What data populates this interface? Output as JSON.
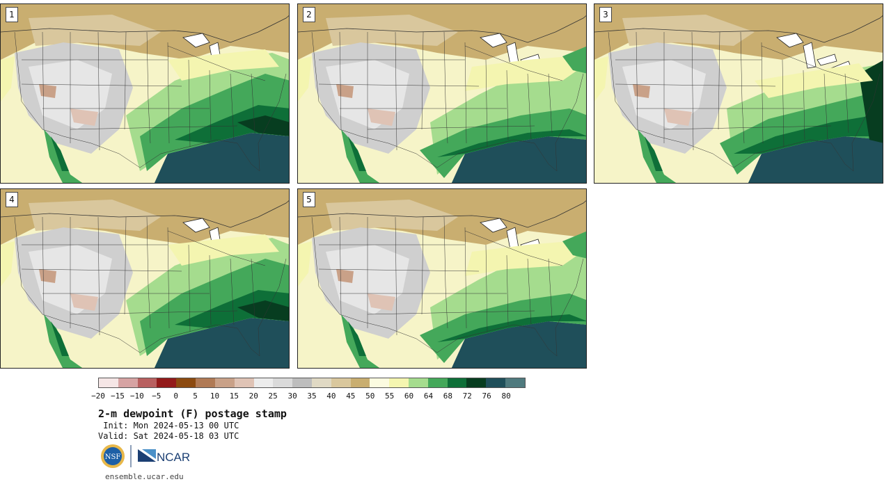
{
  "panels": [
    {
      "number": "1"
    },
    {
      "number": "2"
    },
    {
      "number": "3"
    },
    {
      "number": "4"
    },
    {
      "number": "5"
    }
  ],
  "colorbar": {
    "colors": [
      "#f5e6e6",
      "#d6a3a3",
      "#b86060",
      "#931a1a",
      "#8c4a10",
      "#b07a55",
      "#c9a188",
      "#dfc3b5",
      "#ececec",
      "#dadada",
      "#bdbdbd",
      "#e0d9c4",
      "#d9c79d",
      "#c9ae70",
      "#fbfbe0",
      "#f4f5b0",
      "#a5dc8e",
      "#44a85a",
      "#0e6f38",
      "#073d20",
      "#1f4f5a",
      "#4f7a7e"
    ],
    "tick_labels": [
      "−20",
      "−15",
      "−10",
      "−5",
      "0",
      "5",
      "10",
      "15",
      "20",
      "25",
      "30",
      "35",
      "40",
      "45",
      "50",
      "55",
      "60",
      "64",
      "68",
      "72",
      "76",
      "80"
    ]
  },
  "title": "2-m dewpoint (F) postage stamp",
  "init_line": " Init: Mon 2024-05-13 00 UTC",
  "valid_line": "Valid: Sat 2024-05-18 03 UTC",
  "logos": {
    "nsf": "NSF",
    "ncar": "NCAR"
  },
  "website": "ensemble.ucar.edu"
}
